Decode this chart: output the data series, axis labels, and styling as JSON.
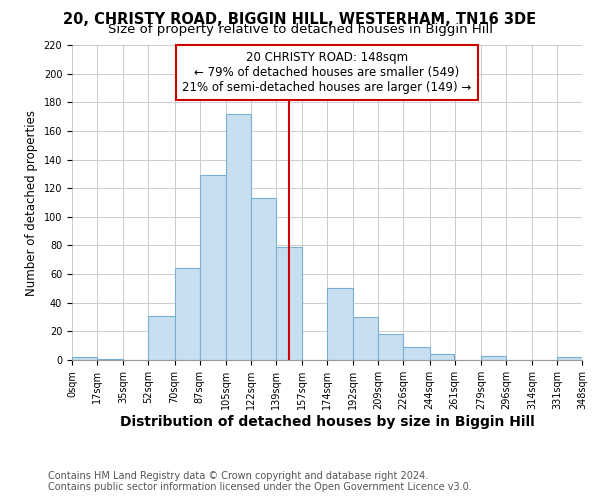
{
  "title": "20, CHRISTY ROAD, BIGGIN HILL, WESTERHAM, TN16 3DE",
  "subtitle": "Size of property relative to detached houses in Biggin Hill",
  "xlabel": "Distribution of detached houses by size in Biggin Hill",
  "ylabel": "Number of detached properties",
  "bin_edges": [
    0,
    17,
    35,
    52,
    70,
    87,
    105,
    122,
    139,
    157,
    174,
    192,
    209,
    226,
    244,
    261,
    279,
    296,
    314,
    331,
    348
  ],
  "bar_heights": [
    2,
    1,
    0,
    31,
    64,
    129,
    172,
    113,
    79,
    0,
    50,
    30,
    18,
    9,
    4,
    0,
    3,
    0,
    0,
    2
  ],
  "bar_color": "#c8dff0",
  "bar_edge_color": "#7aafd4",
  "vline_x": 148,
  "vline_color": "#cc0000",
  "annotation_line1": "20 CHRISTY ROAD: 148sqm",
  "annotation_line2": "← 79% of detached houses are smaller (549)",
  "annotation_line3": "21% of semi-detached houses are larger (149) →",
  "annotation_box_facecolor": "white",
  "annotation_box_edgecolor": "#cc0000",
  "ylim": [
    0,
    220
  ],
  "xlim": [
    0,
    348
  ],
  "tick_labels": [
    "0sqm",
    "17sqm",
    "35sqm",
    "52sqm",
    "70sqm",
    "87sqm",
    "105sqm",
    "122sqm",
    "139sqm",
    "157sqm",
    "174sqm",
    "192sqm",
    "209sqm",
    "226sqm",
    "244sqm",
    "261sqm",
    "279sqm",
    "296sqm",
    "314sqm",
    "331sqm",
    "348sqm"
  ],
  "ytick_values": [
    0,
    20,
    40,
    60,
    80,
    100,
    120,
    140,
    160,
    180,
    200,
    220
  ],
  "footer1": "Contains HM Land Registry data © Crown copyright and database right 2024.",
  "footer2": "Contains public sector information licensed under the Open Government Licence v3.0.",
  "title_fontsize": 10.5,
  "subtitle_fontsize": 9.5,
  "xlabel_fontsize": 10,
  "ylabel_fontsize": 8.5,
  "tick_fontsize": 7,
  "footer_fontsize": 7,
  "annotation_fontsize": 8.5
}
